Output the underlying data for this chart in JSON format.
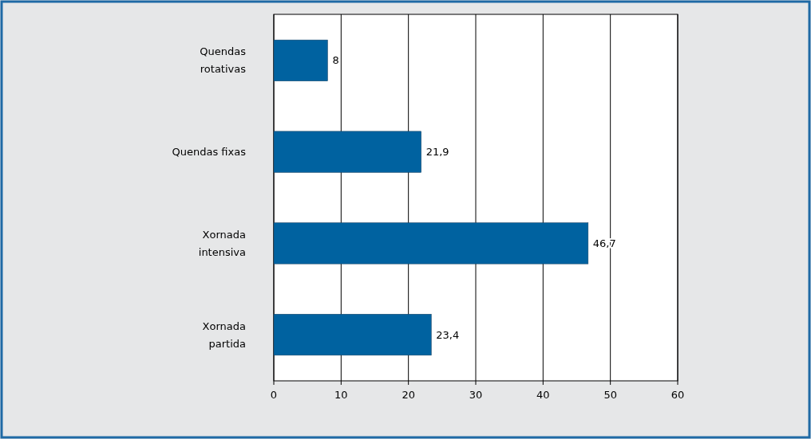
{
  "chart_data": {
    "type": "bar",
    "orientation": "horizontal",
    "categories": [
      "Quendas rotativas",
      "Quendas fixas",
      "Xornada intensiva",
      "Xornada partida"
    ],
    "values": [
      8,
      21.9,
      46.7,
      23.4
    ],
    "color": "#0062a0",
    "xlim": [
      0,
      60
    ],
    "xticks": [
      0,
      10,
      20,
      30,
      40,
      50,
      60
    ],
    "grid": "x",
    "value_labels": [
      "8",
      "21,9",
      "46,7",
      "23,4"
    ]
  }
}
